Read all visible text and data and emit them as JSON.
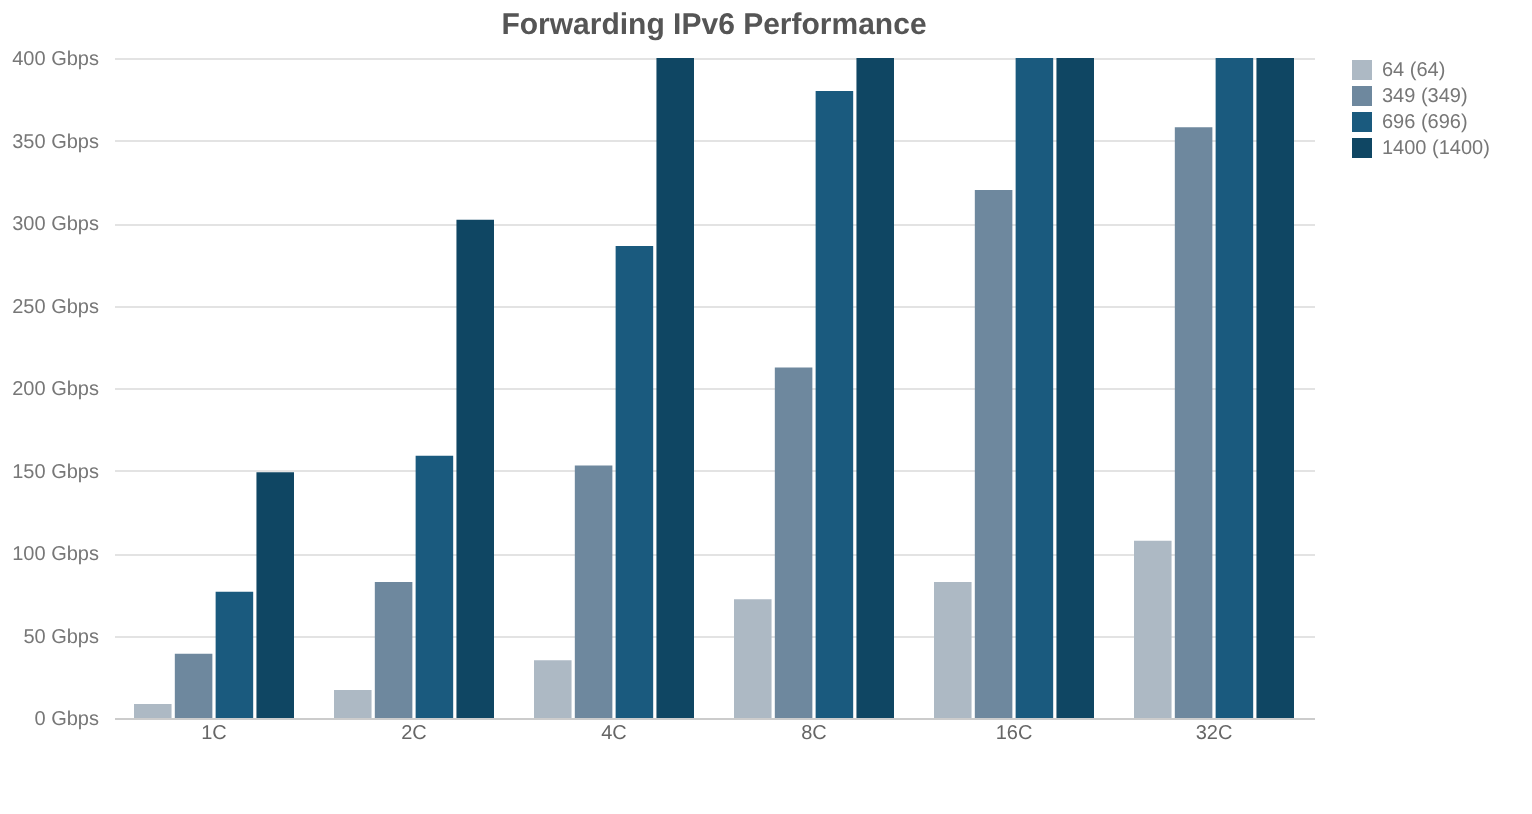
{
  "chart_data": {
    "type": "bar",
    "title": "Forwarding IPv6 Performance",
    "categories": [
      "1C",
      "2C",
      "4C",
      "8C",
      "16C",
      "32C"
    ],
    "series": [
      {
        "name": "64 (64)",
        "color": "#adb9c4",
        "values": [
          8.5,
          17,
          35,
          72,
          82.5,
          107.5
        ]
      },
      {
        "name": "349 (349)",
        "color": "#6e889e",
        "values": [
          39,
          82.5,
          153,
          212.5,
          320,
          358
        ]
      },
      {
        "name": "696 (696)",
        "color": "#1a5a7e",
        "values": [
          76.5,
          159,
          286,
          380,
          400,
          400
        ]
      },
      {
        "name": "1400 (1400)",
        "color": "#0f4663",
        "values": [
          149,
          302,
          400,
          400,
          400,
          400
        ]
      }
    ],
    "ylim": [
      0,
      400
    ],
    "yticks": [
      {
        "value": 0,
        "label": "0 Gbps"
      },
      {
        "value": 50,
        "label": "50 Gbps"
      },
      {
        "value": 100,
        "label": "100 Gbps"
      },
      {
        "value": 150,
        "label": "150 Gbps"
      },
      {
        "value": 200,
        "label": "200 Gbps"
      },
      {
        "value": 250,
        "label": "250 Gbps"
      },
      {
        "value": 300,
        "label": "300 Gbps"
      },
      {
        "value": 350,
        "label": "350 Gbps"
      },
      {
        "value": 400,
        "label": "400 Gbps"
      }
    ],
    "grid": "y",
    "legend": "right"
  }
}
